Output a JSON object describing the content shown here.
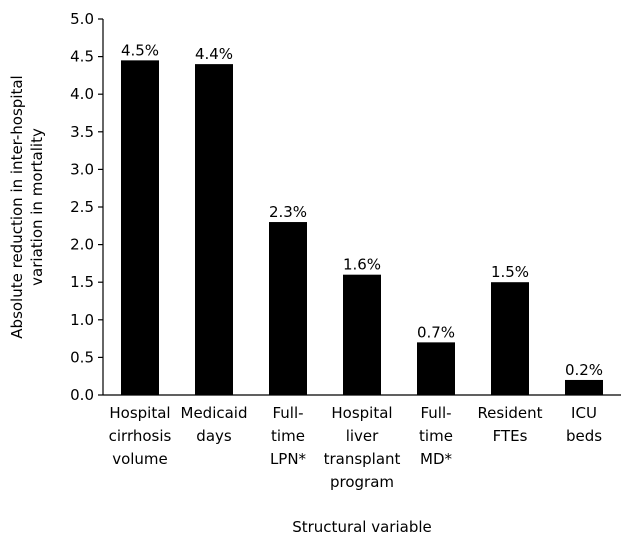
{
  "chart_data": {
    "type": "bar",
    "title": "",
    "xlabel": "Structural variable",
    "ylabel_lines": [
      "Absolute reduction in inter-hospital",
      "variation in mortality"
    ],
    "ylim": [
      0,
      5
    ],
    "yticks": [
      "0.0",
      "0.5",
      "1.0",
      "1.5",
      "2.0",
      "2.5",
      "3.0",
      "3.5",
      "4.0",
      "4.5",
      "5.0"
    ],
    "categories": [
      [
        "Hospital",
        "cirrhosis",
        "volume"
      ],
      [
        "Medicaid",
        "days"
      ],
      [
        "Full-",
        "time",
        "LPN*"
      ],
      [
        "Hospital",
        "liver",
        "transplant",
        "program"
      ],
      [
        "Full-",
        "time",
        "MD*"
      ],
      [
        "Resident",
        "FTEs"
      ],
      [
        "ICU",
        "beds"
      ]
    ],
    "values": [
      4.45,
      4.4,
      2.3,
      1.6,
      0.7,
      1.5,
      0.2
    ],
    "data_labels": [
      "4.5%",
      "4.4%",
      "2.3%",
      "1.6%",
      "0.7%",
      "1.5%",
      "0.2%"
    ],
    "bar_color": "#000000",
    "grid": false,
    "legend": "none"
  }
}
